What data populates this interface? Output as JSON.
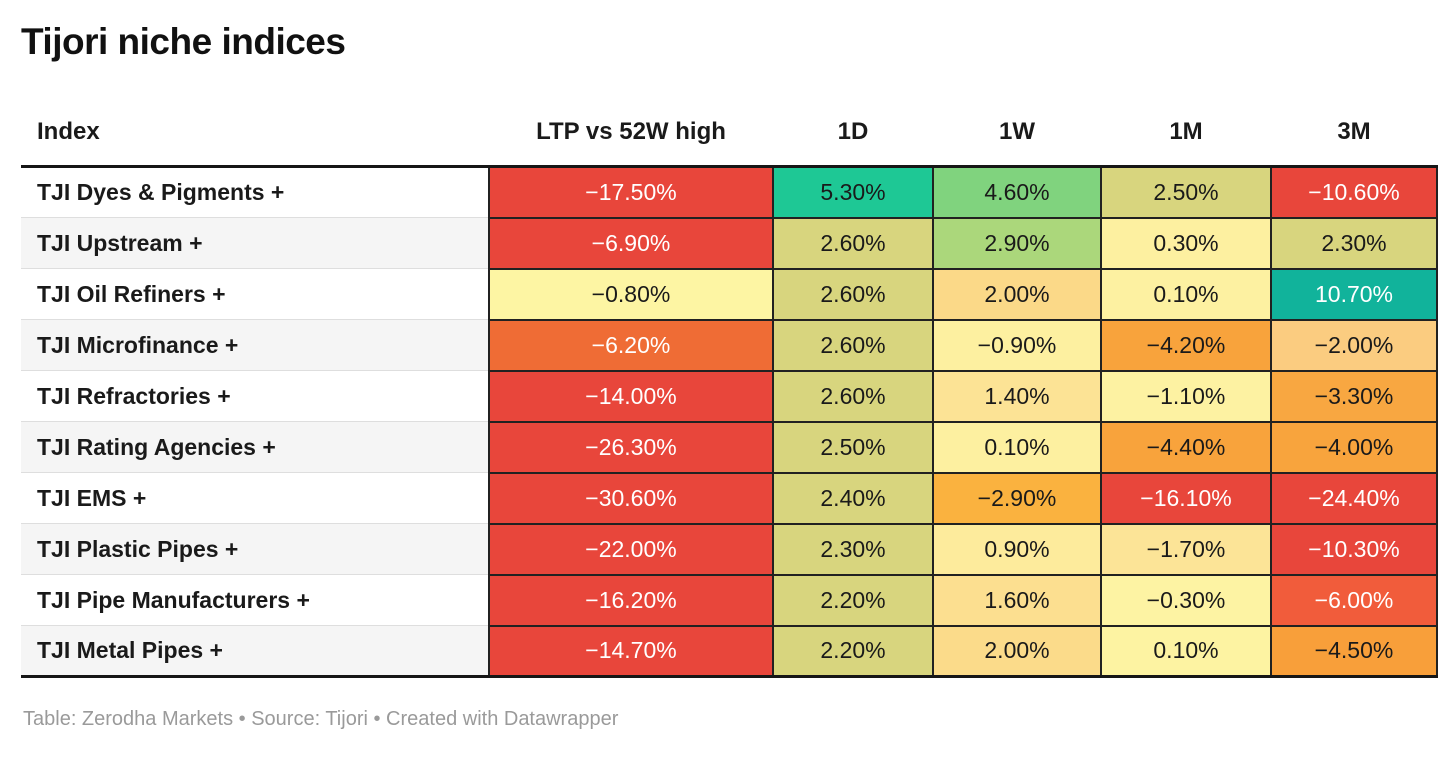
{
  "title": "Tijori niche indices",
  "footer": "Table: Zerodha Markets • Source: Tijori • Created with Datawrapper",
  "chart_data": {
    "type": "table",
    "title": "Tijori niche indices",
    "columns": [
      "Index",
      "LTP vs 52W high",
      "1D",
      "1W",
      "1M",
      "3M"
    ],
    "palette_note": {
      "strong_negative": "#e8463b",
      "negative": "#f8a33c",
      "neutral": "#fdf2a2",
      "positive": "#d8d57e",
      "strong_positive": "#1ec895"
    },
    "rows": [
      {
        "label": "TJI Dyes & Pigments +",
        "cells": [
          {
            "value": "−17.50%",
            "bg": "#e8463b",
            "fg": "#ffffff"
          },
          {
            "value": "5.30%",
            "bg": "#1ec895",
            "fg": "#1a1a1a"
          },
          {
            "value": "4.60%",
            "bg": "#80d37e",
            "fg": "#1a1a1a"
          },
          {
            "value": "2.50%",
            "bg": "#d8d57e",
            "fg": "#1a1a1a"
          },
          {
            "value": "−10.60%",
            "bg": "#e8463b",
            "fg": "#ffffff"
          }
        ]
      },
      {
        "label": "TJI Upstream +",
        "cells": [
          {
            "value": "−6.90%",
            "bg": "#e8463b",
            "fg": "#ffffff"
          },
          {
            "value": "2.60%",
            "bg": "#d8d57e",
            "fg": "#1a1a1a"
          },
          {
            "value": "2.90%",
            "bg": "#abd77b",
            "fg": "#1a1a1a"
          },
          {
            "value": "0.30%",
            "bg": "#fdf0a0",
            "fg": "#1a1a1a"
          },
          {
            "value": "2.30%",
            "bg": "#d8d57e",
            "fg": "#1a1a1a"
          }
        ]
      },
      {
        "label": "TJI Oil Refiners +",
        "cells": [
          {
            "value": "−0.80%",
            "bg": "#fdf5a3",
            "fg": "#1a1a1a"
          },
          {
            "value": "2.60%",
            "bg": "#d8d57e",
            "fg": "#1a1a1a"
          },
          {
            "value": "2.00%",
            "bg": "#fbd988",
            "fg": "#1a1a1a"
          },
          {
            "value": "0.10%",
            "bg": "#fdf1a1",
            "fg": "#1a1a1a"
          },
          {
            "value": "10.70%",
            "bg": "#11b39b",
            "fg": "#ffffff"
          }
        ]
      },
      {
        "label": "TJI Microfinance +",
        "cells": [
          {
            "value": "−6.20%",
            "bg": "#ef6c35",
            "fg": "#ffffff"
          },
          {
            "value": "2.60%",
            "bg": "#d8d57e",
            "fg": "#1a1a1a"
          },
          {
            "value": "−0.90%",
            "bg": "#fdf0a0",
            "fg": "#1a1a1a"
          },
          {
            "value": "−4.20%",
            "bg": "#f8a33c",
            "fg": "#1a1a1a"
          },
          {
            "value": "−2.00%",
            "bg": "#fbcc80",
            "fg": "#1a1a1a"
          }
        ]
      },
      {
        "label": "TJI Refractories +",
        "cells": [
          {
            "value": "−14.00%",
            "bg": "#e8463b",
            "fg": "#ffffff"
          },
          {
            "value": "2.60%",
            "bg": "#d8d57e",
            "fg": "#1a1a1a"
          },
          {
            "value": "1.40%",
            "bg": "#fce395",
            "fg": "#1a1a1a"
          },
          {
            "value": "−1.10%",
            "bg": "#fdf2a2",
            "fg": "#1a1a1a"
          },
          {
            "value": "−3.30%",
            "bg": "#f8a741",
            "fg": "#1a1a1a"
          }
        ]
      },
      {
        "label": "TJI Rating Agencies +",
        "cells": [
          {
            "value": "−26.30%",
            "bg": "#e8463b",
            "fg": "#ffffff"
          },
          {
            "value": "2.50%",
            "bg": "#d8d57e",
            "fg": "#1a1a1a"
          },
          {
            "value": "0.10%",
            "bg": "#fdf0a0",
            "fg": "#1a1a1a"
          },
          {
            "value": "−4.40%",
            "bg": "#f8a33c",
            "fg": "#1a1a1a"
          },
          {
            "value": "−4.00%",
            "bg": "#f8a43d",
            "fg": "#1a1a1a"
          }
        ]
      },
      {
        "label": "TJI EMS +",
        "cells": [
          {
            "value": "−30.60%",
            "bg": "#e8463b",
            "fg": "#ffffff"
          },
          {
            "value": "2.40%",
            "bg": "#d8d57e",
            "fg": "#1a1a1a"
          },
          {
            "value": "−2.90%",
            "bg": "#fab23f",
            "fg": "#1a1a1a"
          },
          {
            "value": "−16.10%",
            "bg": "#e8463b",
            "fg": "#ffffff"
          },
          {
            "value": "−24.40%",
            "bg": "#e8463b",
            "fg": "#ffffff"
          }
        ]
      },
      {
        "label": "TJI Plastic Pipes +",
        "cells": [
          {
            "value": "−22.00%",
            "bg": "#e8463b",
            "fg": "#ffffff"
          },
          {
            "value": "2.30%",
            "bg": "#d8d57e",
            "fg": "#1a1a1a"
          },
          {
            "value": "0.90%",
            "bg": "#fdeb9c",
            "fg": "#1a1a1a"
          },
          {
            "value": "−1.70%",
            "bg": "#fce497",
            "fg": "#1a1a1a"
          },
          {
            "value": "−10.30%",
            "bg": "#e8463b",
            "fg": "#ffffff"
          }
        ]
      },
      {
        "label": "TJI Pipe Manufacturers +",
        "cells": [
          {
            "value": "−16.20%",
            "bg": "#e8463b",
            "fg": "#ffffff"
          },
          {
            "value": "2.20%",
            "bg": "#d8d57e",
            "fg": "#1a1a1a"
          },
          {
            "value": "1.60%",
            "bg": "#fcdf90",
            "fg": "#1a1a1a"
          },
          {
            "value": "−0.30%",
            "bg": "#fdf3a3",
            "fg": "#1a1a1a"
          },
          {
            "value": "−6.00%",
            "bg": "#f15c3b",
            "fg": "#ffffff"
          }
        ]
      },
      {
        "label": "TJI Metal Pipes +",
        "cells": [
          {
            "value": "−14.70%",
            "bg": "#e8463b",
            "fg": "#ffffff"
          },
          {
            "value": "2.20%",
            "bg": "#d8d57e",
            "fg": "#1a1a1a"
          },
          {
            "value": "2.00%",
            "bg": "#fbdb8a",
            "fg": "#1a1a1a"
          },
          {
            "value": "0.10%",
            "bg": "#fdf3a2",
            "fg": "#1a1a1a"
          },
          {
            "value": "−4.50%",
            "bg": "#f89f3a",
            "fg": "#1a1a1a"
          }
        ]
      }
    ]
  }
}
